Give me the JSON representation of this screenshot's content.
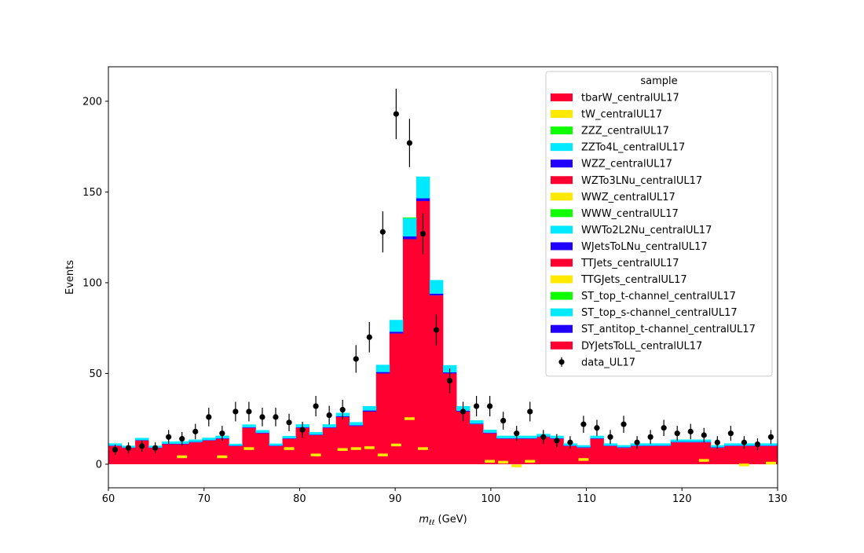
{
  "chart_data": {
    "type": "bar",
    "subtype": "stacked-histogram-with-data-points",
    "xlabel_var": "m",
    "xlabel_sub": "ℓℓ",
    "xlabel_unit": " (GeV)",
    "ylabel": "Events",
    "xlim": [
      60,
      130
    ],
    "ylim": [
      -13,
      219
    ],
    "xticks": [
      "60",
      "70",
      "80",
      "90",
      "100",
      "110",
      "120",
      "130"
    ],
    "xtick_values": [
      60,
      70,
      80,
      90,
      100,
      110,
      120,
      130
    ],
    "yticks": [
      "0",
      "50",
      "100",
      "150",
      "200"
    ],
    "ytick_values": [
      0,
      50,
      100,
      150,
      200
    ],
    "grid": false,
    "legend_title": "sample",
    "legend_position": "top-right",
    "bin_edges": [
      60.0,
      61.4,
      62.8,
      64.2,
      65.6,
      67.0,
      68.4,
      69.8,
      71.2,
      72.6,
      74.0,
      75.4,
      76.8,
      78.2,
      79.6,
      81.0,
      82.4,
      83.8,
      85.2,
      86.6,
      88.0,
      89.4,
      90.8,
      92.2,
      93.6,
      95.0,
      96.4,
      97.8,
      99.2,
      100.6,
      102.0,
      103.4,
      104.8,
      106.2,
      107.6,
      109.0,
      110.4,
      111.8,
      113.2,
      114.6,
      116.0,
      117.4,
      118.8,
      120.2,
      121.6,
      123.0,
      124.4,
      125.8,
      127.2,
      128.6,
      130.0
    ],
    "stack_colors": {
      "tbarW_centralUL17": "#ff0030",
      "tW_centralUL17": "#ffe900",
      "ZZZ_centralUL17": "#10ff00",
      "ZZTo4L_centralUL17": "#00eaff",
      "WZZ_centralUL17": "#2000ff",
      "WZTo3LNu_centralUL17": "#ff0030",
      "WWZ_centralUL17": "#ffe900",
      "WWW_centralUL17": "#10ff00",
      "WWTo2L2Nu_centralUL17": "#00eaff",
      "WJetsToLNu_centralUL17": "#2000ff",
      "TTJets_centralUL17": "#ff0030",
      "TTGJets_centralUL17": "#ffe900",
      "ST_top_t-channel_centralUL17": "#10ff00",
      "ST_top_s-channel_centralUL17": "#00eaff",
      "ST_antitop_t-channel_centralUL17": "#2000ff",
      "DYJetsToLL_centralUL17": "#ff0030"
    },
    "series": [
      {
        "name": "DYJetsToLL_centralUL17",
        "color": "#ff0030",
        "values": [
          10,
          9,
          13,
          9,
          11,
          11,
          12,
          13,
          14,
          10,
          20,
          17,
          10,
          14,
          20,
          16,
          20,
          26,
          21,
          29,
          50,
          72,
          124,
          145,
          93,
          50,
          29,
          22,
          17,
          14,
          14,
          14,
          15,
          14,
          10,
          9,
          14,
          10,
          9,
          10,
          10,
          10,
          12,
          12,
          12,
          9,
          10,
          10,
          10,
          10
        ]
      },
      {
        "name": "ST_antitop_t-channel_centralUL17",
        "color": "#2000ff",
        "values": [
          0.3,
          0.2,
          0.3,
          0.2,
          0.3,
          0.3,
          0.3,
          0.3,
          0.3,
          0.2,
          0.4,
          0.4,
          0.3,
          0.3,
          0.4,
          0.3,
          0.4,
          0.5,
          0.5,
          0.6,
          0.8,
          1.0,
          1.5,
          1.5,
          1.0,
          0.6,
          0.5,
          0.4,
          0.4,
          0.3,
          0.3,
          0.3,
          0.3,
          0.3,
          0.3,
          0.3,
          0.3,
          0.3,
          0.3,
          0.3,
          0.3,
          0.3,
          0.3,
          0.3,
          0.3,
          0.3,
          0.3,
          0.3,
          0.3,
          0.3
        ]
      },
      {
        "name": "ST_top_s-channel_centralUL17",
        "color": "#00eaff",
        "values": [
          1.2,
          1.0,
          1.2,
          1.0,
          1.2,
          1.3,
          1.3,
          1.3,
          1.4,
          1.1,
          1.5,
          1.4,
          1.1,
          1.3,
          1.6,
          1.4,
          1.6,
          1.8,
          1.7,
          2.4,
          4.0,
          6.5,
          10.0,
          12.0,
          7.5,
          4.0,
          2.5,
          1.8,
          1.6,
          1.4,
          1.4,
          1.4,
          1.4,
          1.4,
          1.2,
          1.2,
          1.4,
          1.2,
          1.2,
          1.2,
          1.2,
          1.2,
          1.3,
          1.3,
          1.3,
          1.2,
          1.2,
          1.2,
          1.2,
          1.2
        ]
      },
      {
        "name": "ST_top_t-channel_centralUL17",
        "color": "#10ff00",
        "values": [
          0,
          0,
          0,
          0,
          0,
          0,
          0,
          0,
          0,
          0,
          0,
          0,
          0,
          0,
          0,
          0,
          0,
          0,
          0,
          0,
          0,
          0,
          0.5,
          0,
          0,
          0,
          0,
          0,
          0,
          0,
          0,
          0,
          0,
          0,
          0,
          0,
          0,
          0,
          0,
          0,
          0,
          0,
          0,
          0,
          0,
          0,
          0,
          0,
          0,
          0
        ]
      }
    ],
    "component_marks": [
      {
        "sample": "TTGJets_centralUL17",
        "color": "#ffe900",
        "bins": [
          5,
          8,
          10,
          13,
          15,
          17,
          18,
          19,
          20,
          21,
          22,
          23,
          28,
          29,
          30,
          31,
          35,
          44,
          47,
          49
        ],
        "values": [
          4.0,
          4.0,
          8.5,
          8.5,
          5.0,
          8.0,
          8.5,
          9.0,
          5.0,
          10.5,
          25.0,
          8.5,
          1.5,
          1.0,
          -1.0,
          1.5,
          2.5,
          2.0,
          -0.5,
          0.5
        ]
      }
    ],
    "data": {
      "name": "data_UL17",
      "x": [
        60.7,
        62.1,
        63.5,
        64.9,
        66.3,
        67.7,
        69.1,
        70.5,
        71.9,
        73.3,
        74.7,
        76.1,
        77.5,
        78.9,
        80.3,
        81.7,
        83.1,
        84.5,
        85.9,
        87.3,
        88.7,
        90.1,
        91.5,
        92.9,
        94.3,
        95.7,
        97.1,
        98.5,
        99.9,
        101.3,
        102.7,
        104.1,
        105.5,
        106.9,
        108.3,
        109.7,
        111.1,
        112.5,
        113.9,
        115.3,
        116.7,
        118.1,
        119.5,
        120.9,
        122.3,
        123.7,
        125.1,
        126.5,
        127.9,
        129.3
      ],
      "y": [
        8,
        9,
        10,
        9,
        15,
        14,
        18,
        26,
        17,
        29,
        29,
        26,
        26,
        23,
        19,
        32,
        27,
        30,
        58,
        70,
        128,
        193,
        177,
        127,
        74,
        46,
        29,
        32,
        32,
        24,
        17,
        29,
        15,
        13,
        12,
        22,
        20,
        15,
        22,
        12,
        15,
        20,
        17,
        18,
        16,
        12,
        17,
        12,
        11,
        15
      ],
      "yerr_method": "sqrt(N)"
    },
    "legend": [
      {
        "label": "tbarW_centralUL17",
        "color": "#ff0030",
        "marker": "patch"
      },
      {
        "label": "tW_centralUL17",
        "color": "#ffe900",
        "marker": "patch"
      },
      {
        "label": "ZZZ_centralUL17",
        "color": "#10ff00",
        "marker": "patch"
      },
      {
        "label": "ZZTo4L_centralUL17",
        "color": "#00eaff",
        "marker": "patch"
      },
      {
        "label": "WZZ_centralUL17",
        "color": "#2000ff",
        "marker": "patch"
      },
      {
        "label": "WZTo3LNu_centralUL17",
        "color": "#ff0030",
        "marker": "patch"
      },
      {
        "label": "WWZ_centralUL17",
        "color": "#ffe900",
        "marker": "patch"
      },
      {
        "label": "WWW_centralUL17",
        "color": "#10ff00",
        "marker": "patch"
      },
      {
        "label": "WWTo2L2Nu_centralUL17",
        "color": "#00eaff",
        "marker": "patch"
      },
      {
        "label": "WJetsToLNu_centralUL17",
        "color": "#2000ff",
        "marker": "patch"
      },
      {
        "label": "TTJets_centralUL17",
        "color": "#ff0030",
        "marker": "patch"
      },
      {
        "label": "TTGJets_centralUL17",
        "color": "#ffe900",
        "marker": "patch"
      },
      {
        "label": "ST_top_t-channel_centralUL17",
        "color": "#10ff00",
        "marker": "patch"
      },
      {
        "label": "ST_top_s-channel_centralUL17",
        "color": "#00eaff",
        "marker": "patch"
      },
      {
        "label": "ST_antitop_t-channel_centralUL17",
        "color": "#2000ff",
        "marker": "patch"
      },
      {
        "label": "DYJetsToLL_centralUL17",
        "color": "#ff0030",
        "marker": "patch"
      },
      {
        "label": "data_UL17",
        "color": "#000000",
        "marker": "errorbar-point"
      }
    ]
  }
}
